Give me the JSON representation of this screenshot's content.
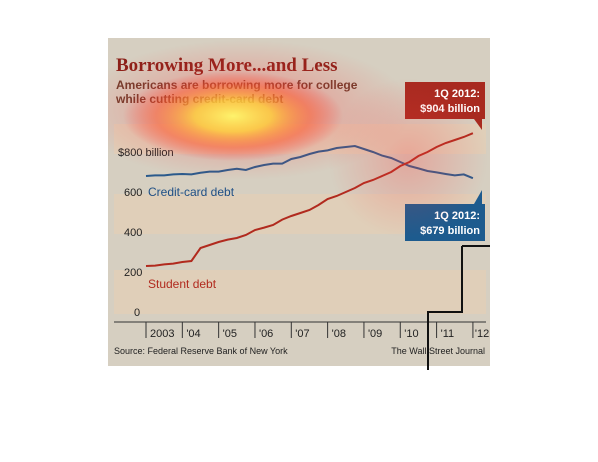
{
  "chart_data": {
    "type": "line",
    "title": "Borrowing More...and Less",
    "subtitle_lines": [
      "Americans are borrowing more for college",
      "while cutting credit-card debt"
    ],
    "y_ticks": [
      "0",
      "200",
      "400",
      "600",
      "$800 billion"
    ],
    "y_tick_values": [
      0,
      200,
      400,
      600,
      800
    ],
    "x_tick_labels": [
      "2003",
      "'04",
      "'05",
      "'06",
      "'07",
      "'08",
      "'09",
      "'10",
      "'11",
      "'12"
    ],
    "ylim": [
      0,
      950
    ],
    "xlim": [
      2003,
      2012.25
    ],
    "series": [
      {
        "name": "Credit-card debt",
        "color": "#2a5a8c",
        "x": [
          2003.0,
          2003.25,
          2003.5,
          2003.75,
          2004.0,
          2004.25,
          2004.5,
          2004.75,
          2005.0,
          2005.25,
          2005.5,
          2005.75,
          2006.0,
          2006.25,
          2006.5,
          2006.75,
          2007.0,
          2007.25,
          2007.5,
          2007.75,
          2008.0,
          2008.25,
          2008.5,
          2008.75,
          2009.0,
          2009.25,
          2009.5,
          2009.75,
          2010.0,
          2010.25,
          2010.5,
          2010.75,
          2011.0,
          2011.25,
          2011.5,
          2011.75,
          2012.0
        ],
        "y": [
          690,
          693,
          693,
          698,
          700,
          698,
          706,
          712,
          712,
          720,
          726,
          720,
          735,
          745,
          752,
          752,
          775,
          785,
          800,
          812,
          818,
          830,
          835,
          840,
          825,
          810,
          792,
          780,
          760,
          740,
          728,
          715,
          708,
          700,
          693,
          698,
          679
        ]
      },
      {
        "name": "Student debt",
        "color": "#b12a1e",
        "x": [
          2003.0,
          2003.25,
          2003.5,
          2003.75,
          2004.0,
          2004.25,
          2004.5,
          2004.75,
          2005.0,
          2005.25,
          2005.5,
          2005.75,
          2006.0,
          2006.25,
          2006.5,
          2006.75,
          2007.0,
          2007.25,
          2007.5,
          2007.75,
          2008.0,
          2008.25,
          2008.5,
          2008.75,
          2009.0,
          2009.25,
          2009.5,
          2009.75,
          2010.0,
          2010.25,
          2010.5,
          2010.75,
          2011.0,
          2011.25,
          2011.5,
          2011.75,
          2012.0
        ],
        "y": [
          240,
          242,
          248,
          252,
          260,
          265,
          330,
          345,
          360,
          372,
          380,
          395,
          420,
          432,
          445,
          472,
          490,
          505,
          520,
          545,
          575,
          590,
          610,
          630,
          655,
          670,
          690,
          710,
          740,
          760,
          790,
          810,
          835,
          855,
          870,
          885,
          904
        ]
      }
    ],
    "series_labels": {
      "credit": "Credit-card debt",
      "student": "Student debt"
    },
    "callouts": {
      "student": {
        "line1": "1Q 2012:",
        "line2": "$904 billion",
        "color": "#a82a20"
      },
      "credit": {
        "line1": "1Q 2012:",
        "line2": "$679 billion",
        "color": "#1d5b8e"
      }
    },
    "source": "Source: Federal Reserve Bank of New York",
    "credit": "The Wall Street Journal",
    "band_color": "#e3cfb6",
    "background": "#d6cfc1"
  }
}
